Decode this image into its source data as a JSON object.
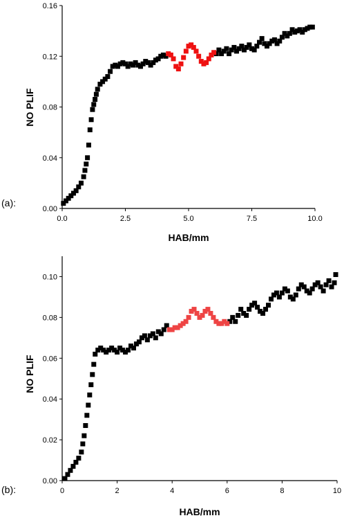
{
  "chart_data": [
    {
      "type": "scatter",
      "panel_label": "(a):",
      "title": "",
      "xlabel": "HAB/mm",
      "ylabel": "NO PLIF",
      "xlim": [
        0,
        10
      ],
      "ylim": [
        0,
        0.16
      ],
      "xticks": [
        "0.0",
        "2.5",
        "5.0",
        "7.5",
        "10.0"
      ],
      "yticks": [
        "0.00",
        "0.04",
        "0.08",
        "0.12",
        "0.16"
      ],
      "xtick_values": [
        0,
        2.5,
        5,
        7.5,
        10
      ],
      "ytick_values": [
        0,
        0.04,
        0.08,
        0.12,
        0.16
      ],
      "grid": false,
      "series": [
        {
          "color": "#000000",
          "marker": "square",
          "x": [
            0.05,
            0.15,
            0.25,
            0.35,
            0.45,
            0.55,
            0.65,
            0.75,
            0.85,
            0.9,
            0.95,
            1.0,
            1.05,
            1.1,
            1.15,
            1.2,
            1.25,
            1.3,
            1.35,
            1.4,
            1.5,
            1.6,
            1.7,
            1.8,
            1.9,
            2.0,
            2.1,
            2.2,
            2.3,
            2.4,
            2.5,
            2.6,
            2.7,
            2.8,
            2.9,
            3.0,
            3.1,
            3.2,
            3.3,
            3.4,
            3.5,
            3.6,
            3.7,
            3.8,
            3.9,
            4.0,
            4.1,
            6.1,
            6.2,
            6.3,
            6.4,
            6.5,
            6.6,
            6.7,
            6.8,
            6.9,
            7.0,
            7.1,
            7.2,
            7.3,
            7.4,
            7.5,
            7.6,
            7.7,
            7.8,
            7.9,
            8.0,
            8.1,
            8.2,
            8.3,
            8.4,
            8.5,
            8.6,
            8.7,
            8.8,
            8.9,
            9.0,
            9.1,
            9.2,
            9.3,
            9.4,
            9.5,
            9.6,
            9.7,
            9.8,
            9.9
          ],
          "y": [
            0.004,
            0.006,
            0.008,
            0.01,
            0.012,
            0.014,
            0.017,
            0.02,
            0.025,
            0.03,
            0.035,
            0.04,
            0.05,
            0.062,
            0.07,
            0.078,
            0.082,
            0.086,
            0.09,
            0.094,
            0.098,
            0.1,
            0.102,
            0.104,
            0.108,
            0.112,
            0.113,
            0.112,
            0.114,
            0.115,
            0.114,
            0.112,
            0.114,
            0.113,
            0.115,
            0.113,
            0.112,
            0.114,
            0.116,
            0.115,
            0.113,
            0.115,
            0.117,
            0.118,
            0.12,
            0.121,
            0.12,
            0.122,
            0.125,
            0.122,
            0.124,
            0.126,
            0.122,
            0.125,
            0.127,
            0.124,
            0.126,
            0.128,
            0.125,
            0.127,
            0.129,
            0.126,
            0.125,
            0.128,
            0.131,
            0.134,
            0.13,
            0.128,
            0.13,
            0.132,
            0.133,
            0.13,
            0.132,
            0.135,
            0.138,
            0.136,
            0.138,
            0.141,
            0.139,
            0.14,
            0.141,
            0.139,
            0.141,
            0.142,
            0.143,
            0.143
          ]
        },
        {
          "color": "#ee1111",
          "marker": "square",
          "x": [
            4.2,
            4.3,
            4.4,
            4.5,
            4.6,
            4.7,
            4.8,
            4.9,
            5.0,
            5.1,
            5.2,
            5.3,
            5.4,
            5.5,
            5.6,
            5.7,
            5.8,
            5.9,
            6.0
          ],
          "y": [
            0.122,
            0.121,
            0.118,
            0.112,
            0.11,
            0.114,
            0.119,
            0.124,
            0.128,
            0.129,
            0.127,
            0.124,
            0.12,
            0.116,
            0.114,
            0.115,
            0.118,
            0.121,
            0.123
          ]
        }
      ]
    },
    {
      "type": "scatter",
      "panel_label": "(b):",
      "title": "",
      "xlabel": "HAB/mm",
      "ylabel": "NO PLIF",
      "xlim": [
        0,
        10
      ],
      "ylim": [
        0,
        0.11
      ],
      "xticks": [
        "0",
        "2",
        "4",
        "6",
        "8",
        "10"
      ],
      "yticks": [
        "0.00",
        "0.02",
        "0.04",
        "0.06",
        "0.08",
        "0.10"
      ],
      "xtick_values": [
        0,
        2,
        4,
        6,
        8,
        10
      ],
      "ytick_values": [
        0,
        0.02,
        0.04,
        0.06,
        0.08,
        0.1
      ],
      "grid": false,
      "series": [
        {
          "color": "#000000",
          "marker": "square",
          "x": [
            0.1,
            0.2,
            0.3,
            0.4,
            0.5,
            0.6,
            0.7,
            0.75,
            0.8,
            0.85,
            0.9,
            0.95,
            1.0,
            1.05,
            1.1,
            1.15,
            1.2,
            1.3,
            1.4,
            1.5,
            1.6,
            1.7,
            1.8,
            1.9,
            2.0,
            2.1,
            2.2,
            2.3,
            2.4,
            2.5,
            2.6,
            2.7,
            2.8,
            2.9,
            3.0,
            3.1,
            3.2,
            3.3,
            3.4,
            3.5,
            3.6,
            3.7,
            3.8,
            6.1,
            6.2,
            6.3,
            6.4,
            6.5,
            6.6,
            6.7,
            6.8,
            6.9,
            7.0,
            7.1,
            7.2,
            7.3,
            7.4,
            7.5,
            7.6,
            7.7,
            7.8,
            7.9,
            8.0,
            8.1,
            8.2,
            8.3,
            8.4,
            8.5,
            8.6,
            8.7,
            8.8,
            8.9,
            9.0,
            9.1,
            9.2,
            9.3,
            9.4,
            9.5,
            9.6,
            9.7,
            9.8,
            9.9,
            9.95
          ],
          "y": [
            0.001,
            0.003,
            0.005,
            0.007,
            0.009,
            0.011,
            0.014,
            0.018,
            0.022,
            0.027,
            0.032,
            0.037,
            0.042,
            0.047,
            0.052,
            0.057,
            0.062,
            0.064,
            0.065,
            0.064,
            0.063,
            0.064,
            0.065,
            0.064,
            0.063,
            0.065,
            0.064,
            0.063,
            0.064,
            0.066,
            0.065,
            0.067,
            0.068,
            0.07,
            0.071,
            0.069,
            0.071,
            0.072,
            0.07,
            0.073,
            0.072,
            0.074,
            0.076,
            0.078,
            0.08,
            0.078,
            0.081,
            0.084,
            0.082,
            0.081,
            0.084,
            0.086,
            0.087,
            0.085,
            0.083,
            0.082,
            0.084,
            0.086,
            0.089,
            0.091,
            0.092,
            0.09,
            0.092,
            0.094,
            0.093,
            0.09,
            0.089,
            0.091,
            0.094,
            0.096,
            0.095,
            0.093,
            0.092,
            0.094,
            0.096,
            0.097,
            0.095,
            0.093,
            0.096,
            0.098,
            0.095,
            0.097,
            0.101
          ]
        },
        {
          "color": "#ee4444",
          "marker": "square",
          "x": [
            3.9,
            4.0,
            4.1,
            4.2,
            4.3,
            4.4,
            4.5,
            4.6,
            4.7,
            4.8,
            4.9,
            5.0,
            5.1,
            5.2,
            5.3,
            5.4,
            5.5,
            5.6,
            5.7,
            5.8,
            5.9,
            6.0
          ],
          "y": [
            0.074,
            0.074,
            0.075,
            0.075,
            0.076,
            0.077,
            0.078,
            0.08,
            0.083,
            0.084,
            0.082,
            0.08,
            0.081,
            0.083,
            0.084,
            0.082,
            0.08,
            0.078,
            0.077,
            0.077,
            0.078,
            0.077
          ]
        }
      ]
    }
  ]
}
